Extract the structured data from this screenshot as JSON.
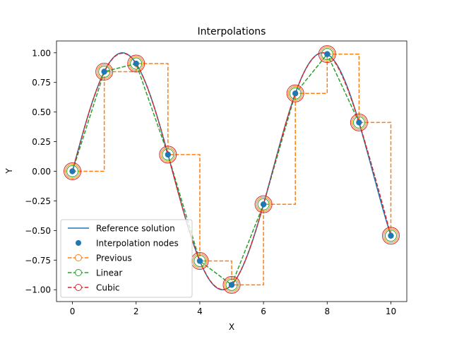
{
  "chart_data": {
    "type": "line",
    "title": "Interpolations",
    "xlabel": "X",
    "ylabel": "Y",
    "xlim": [
      -0.5,
      10.5
    ],
    "ylim": [
      -1.1,
      1.1
    ],
    "xticks": [
      0,
      2,
      4,
      6,
      8,
      10
    ],
    "xtick_labels": [
      "0",
      "2",
      "4",
      "6",
      "8",
      "10"
    ],
    "yticks": [
      -1.0,
      -0.75,
      -0.5,
      -0.25,
      0.0,
      0.25,
      0.5,
      0.75,
      1.0
    ],
    "ytick_labels": [
      "−1.00",
      "−0.75",
      "−0.50",
      "−0.25",
      "0.00",
      "0.25",
      "0.50",
      "0.75",
      "1.00"
    ],
    "grid": false,
    "legend_position": "lower-left",
    "nodes": {
      "x": [
        0,
        1,
        2,
        3,
        4,
        5,
        6,
        7,
        8,
        9,
        10
      ],
      "y": [
        0.0,
        0.841,
        0.909,
        0.141,
        -0.757,
        -0.959,
        -0.279,
        0.657,
        0.989,
        0.412,
        -0.544
      ]
    },
    "series": [
      {
        "name": "Reference solution",
        "kind": "reference",
        "function": "sin(x)",
        "color": "#1f77b4",
        "style": "solid"
      },
      {
        "name": "Interpolation nodes",
        "kind": "nodes",
        "color": "#1f77b4",
        "marker": "filled-circle"
      },
      {
        "name": "Previous",
        "kind": "previous",
        "color": "#ff7f0e",
        "style": "dashed",
        "marker": "open-circle"
      },
      {
        "name": "Linear",
        "kind": "linear",
        "color": "#2ca02c",
        "style": "dashed",
        "marker": "open-circle"
      },
      {
        "name": "Cubic",
        "kind": "cubic",
        "color": "#d62728",
        "style": "dashed",
        "marker": "open-circle"
      }
    ]
  }
}
